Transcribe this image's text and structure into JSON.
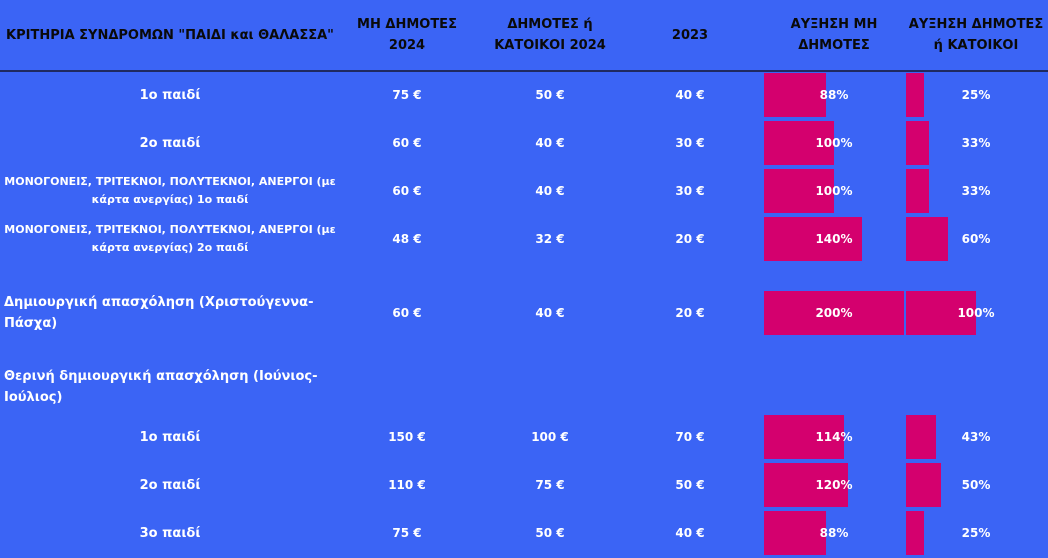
{
  "header": {
    "criteria": "ΚΡΙΤΗΡΙΑ ΣΥΝΔΡΟΜΩΝ \"ΠΑΙΔΙ και ΘΑΛΑΣΣΑ\"",
    "non_residents": "ΜΗ ΔΗΜΟΤΕΣ 2024",
    "residents": "ΔΗΜΟΤΕΣ ή ΚΑΤΟΙΚΟΙ 2024",
    "y2023": "2023",
    "inc_non_residents": "ΑΥΞΗΣΗ ΜΗ ΔΗΜΟΤΕΣ",
    "inc_residents": "ΑΥΞΗΣΗ ΔΗΜΟΤΕΣ ή ΚΑΤΟΙΚΟΙ"
  },
  "colors": {
    "background": "#3b64f5",
    "bar": "#d4006e",
    "header_text": "#0a0a0a"
  },
  "chart_data": {
    "type": "table",
    "bar_scale_max": 200,
    "columns": [
      "ΚΡΙΤΗΡΙΑ ΣΥΝΔΡΟΜΩΝ \"ΠΑΙΔΙ και ΘΑΛΑΣΣΑ\"",
      "ΜΗ ΔΗΜΟΤΕΣ 2024",
      "ΔΗΜΟΤΕΣ ή ΚΑΤΟΙΚΟΙ 2024",
      "2023",
      "ΑΥΞΗΣΗ ΜΗ ΔΗΜΟΤΕΣ",
      "ΑΥΞΗΣΗ ΔΗΜΟΤΕΣ ή ΚΑΤΟΙΚΟΙ"
    ],
    "rows": [
      {
        "label": "1ο παιδί",
        "non_residents": "75 €",
        "residents": "50 €",
        "y2023": "40 €",
        "inc_non_residents": 88,
        "inc_residents": 25
      },
      {
        "label": "2ο παιδί",
        "non_residents": "60 €",
        "residents": "40 €",
        "y2023": "30 €",
        "inc_non_residents": 100,
        "inc_residents": 33
      },
      {
        "label": "ΜΟΝΟΓΟΝΕΙΣ, ΤΡΙΤΕΚΝΟΙ, ΠΟΛΥΤΕΚΝΟΙ, ΑΝΕΡΓΟΙ (με κάρτα ανεργίας) 1ο παιδί",
        "non_residents": "60 €",
        "residents": "40 €",
        "y2023": "30 €",
        "inc_non_residents": 100,
        "inc_residents": 33
      },
      {
        "label": "ΜΟΝΟΓΟΝΕΙΣ, ΤΡΙΤΕΚΝΟΙ, ΠΟΛΥΤΕΚΝΟΙ, ΑΝΕΡΓΟΙ (με κάρτα ανεργίας) 2ο παιδί",
        "non_residents": "48 €",
        "residents": "32 €",
        "y2023": "20 €",
        "inc_non_residents": 140,
        "inc_residents": 60
      },
      {
        "label": "Δημιουργική απασχόληση (Χριστούγεννα-Πάσχα)",
        "non_residents": "60 €",
        "residents": "40 €",
        "y2023": "20 €",
        "inc_non_residents": 200,
        "inc_residents": 100
      },
      {
        "label": "Θερινή δημιουργική απασχόληση (Ιούνιος-Ιούλιος)"
      },
      {
        "label": "1ο παιδί",
        "non_residents": "150 €",
        "residents": "100 €",
        "y2023": "70 €",
        "inc_non_residents": 114,
        "inc_residents": 43
      },
      {
        "label": "2ο παιδί",
        "non_residents": "110 €",
        "residents": "75 €",
        "y2023": "50 €",
        "inc_non_residents": 120,
        "inc_residents": 50
      },
      {
        "label": "3ο παιδί",
        "non_residents": "75 €",
        "residents": "50 €",
        "y2023": "40 €",
        "inc_non_residents": 88,
        "inc_residents": 25
      }
    ]
  }
}
